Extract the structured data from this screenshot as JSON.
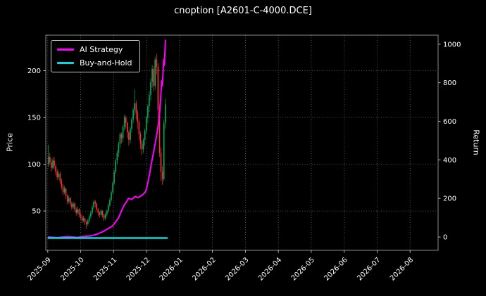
{
  "title": "cnoption [A2601-C-4000.DCE]",
  "legend": [
    {
      "label": "AI Strategy",
      "color": "#ff00ff"
    },
    {
      "label": "Buy-and-Hold",
      "color": "#00dcdc"
    }
  ],
  "chart_data": {
    "type": "mixed",
    "subtype": "candlestick-with-overlay-lines",
    "title": "cnoption [A2601-C-4000.DCE]",
    "background": "#000000",
    "grid": true,
    "legend_position": "upper-left",
    "left_axis": {
      "label": "Price",
      "range": [
        8,
        238
      ],
      "ticks": [
        50,
        100,
        150,
        200
      ]
    },
    "right_axis": {
      "label": "Return",
      "range": [
        -69,
        1047
      ],
      "ticks": [
        0,
        200,
        400,
        600,
        800,
        1000
      ]
    },
    "x_axis": {
      "xlim": [
        -0.06,
        11.85
      ],
      "ticks": [
        0,
        1,
        2,
        3,
        4,
        5,
        6,
        7,
        8,
        9,
        10,
        11
      ],
      "tick_labels": [
        "2025-09",
        "2025-10",
        "2025-11",
        "2025-12",
        "2026-01",
        "2026-02",
        "2026-03",
        "2026-04",
        "2026-05",
        "2026-06",
        "2026-07",
        "2026-08"
      ]
    },
    "candle_colors": {
      "up": "#00b060",
      "down": "#ff3232"
    },
    "candles": {
      "t_start": 0.02,
      "t_step": 0.044375,
      "ohlc": [
        [
          100,
          121,
          97,
          108
        ],
        [
          108,
          112,
          99,
          102
        ],
        [
          102,
          106,
          92,
          96
        ],
        [
          96,
          107,
          94,
          104
        ],
        [
          104,
          108,
          95,
          98
        ],
        [
          98,
          101,
          88,
          92
        ],
        [
          92,
          95,
          83,
          86
        ],
        [
          86,
          93,
          84,
          90
        ],
        [
          90,
          92,
          79,
          82
        ],
        [
          82,
          85,
          73,
          76
        ],
        [
          76,
          79,
          67,
          70
        ],
        [
          70,
          77,
          68,
          74
        ],
        [
          74,
          75,
          63,
          66
        ],
        [
          66,
          68,
          57,
          60
        ],
        [
          60,
          67,
          58,
          64
        ],
        [
          64,
          65,
          55,
          58
        ],
        [
          58,
          60,
          51,
          54
        ],
        [
          54,
          60,
          52,
          58
        ],
        [
          58,
          59,
          49,
          52
        ],
        [
          52,
          54,
          45,
          48
        ],
        [
          48,
          55,
          46,
          52
        ],
        [
          52,
          53,
          43,
          46
        ],
        [
          46,
          48,
          41,
          44
        ],
        [
          44,
          46,
          37,
          40
        ],
        [
          40,
          45,
          38,
          42
        ],
        [
          42,
          43,
          35,
          38
        ],
        [
          38,
          40,
          31,
          36
        ],
        [
          36,
          42,
          34,
          40
        ],
        [
          40,
          46,
          38,
          44
        ],
        [
          44,
          50,
          42,
          48
        ],
        [
          48,
          56,
          46,
          54
        ],
        [
          54,
          62,
          52,
          60
        ],
        [
          60,
          62,
          54,
          58
        ],
        [
          58,
          59,
          49,
          52
        ],
        [
          52,
          53,
          45,
          48
        ],
        [
          48,
          50,
          43,
          46
        ],
        [
          46,
          52,
          44,
          50
        ],
        [
          50,
          51,
          43,
          46
        ],
        [
          46,
          47,
          39,
          42
        ],
        [
          42,
          48,
          40,
          46
        ],
        [
          46,
          52,
          44,
          50
        ],
        [
          50,
          58,
          48,
          56
        ],
        [
          56,
          64,
          54,
          62
        ],
        [
          62,
          72,
          60,
          70
        ],
        [
          70,
          82,
          68,
          80
        ],
        [
          80,
          94,
          78,
          92
        ],
        [
          92,
          106,
          90,
          104
        ],
        [
          104,
          115,
          100,
          112
        ],
        [
          112,
          124,
          108,
          122
        ],
        [
          122,
          134,
          118,
          132
        ],
        [
          132,
          134,
          122,
          128
        ],
        [
          128,
          142,
          124,
          140
        ],
        [
          140,
          153,
          136,
          150
        ],
        [
          150,
          152,
          138,
          144
        ],
        [
          144,
          146,
          128,
          134
        ],
        [
          134,
          136,
          120,
          126
        ],
        [
          126,
          140,
          122,
          138
        ],
        [
          138,
          150,
          134,
          148
        ],
        [
          148,
          160,
          144,
          158
        ],
        [
          158,
          180,
          152,
          165
        ],
        [
          165,
          168,
          148,
          155
        ],
        [
          155,
          158,
          138,
          145
        ],
        [
          145,
          148,
          126,
          132
        ],
        [
          132,
          135,
          116,
          122
        ],
        [
          122,
          125,
          110,
          116
        ],
        [
          116,
          128,
          112,
          126
        ],
        [
          126,
          138,
          120,
          136
        ],
        [
          136,
          152,
          132,
          150
        ],
        [
          150,
          164,
          144,
          162
        ],
        [
          162,
          178,
          156,
          174
        ],
        [
          174,
          192,
          168,
          188
        ],
        [
          188,
          206,
          182,
          202
        ],
        [
          202,
          205,
          178,
          184
        ],
        [
          184,
          215,
          180,
          212
        ],
        [
          212,
          218,
          196,
          204
        ],
        [
          204,
          208,
          150,
          158
        ],
        [
          158,
          164,
          108,
          112
        ],
        [
          112,
          118,
          82,
          92
        ],
        [
          92,
          98,
          78,
          84
        ],
        [
          84,
          148,
          82,
          144
        ],
        [
          144,
          170,
          138,
          164
        ]
      ]
    },
    "series": [
      {
        "name": "AI Strategy",
        "axis": "right",
        "color": "#ff00ff",
        "width": 2,
        "points": [
          [
            0.02,
            0
          ],
          [
            0.3,
            -3
          ],
          [
            0.6,
            2
          ],
          [
            0.9,
            -2
          ],
          [
            1.1,
            3
          ],
          [
            1.3,
            5
          ],
          [
            1.5,
            15
          ],
          [
            1.7,
            30
          ],
          [
            1.85,
            45
          ],
          [
            1.95,
            55
          ],
          [
            2.05,
            75
          ],
          [
            2.15,
            100
          ],
          [
            2.25,
            140
          ],
          [
            2.32,
            165
          ],
          [
            2.4,
            185
          ],
          [
            2.45,
            200
          ],
          [
            2.55,
            195
          ],
          [
            2.65,
            210
          ],
          [
            2.75,
            205
          ],
          [
            2.85,
            215
          ],
          [
            2.95,
            230
          ],
          [
            3.0,
            250
          ],
          [
            3.05,
            290
          ],
          [
            3.1,
            335
          ],
          [
            3.15,
            385
          ],
          [
            3.2,
            430
          ],
          [
            3.25,
            475
          ],
          [
            3.3,
            520
          ],
          [
            3.34,
            565
          ],
          [
            3.37,
            605
          ],
          [
            3.4,
            650
          ],
          [
            3.42,
            700
          ],
          [
            3.44,
            755
          ],
          [
            3.46,
            810
          ],
          [
            3.48,
            785
          ],
          [
            3.5,
            855
          ],
          [
            3.52,
            920
          ],
          [
            3.54,
            890
          ],
          [
            3.57,
            1020
          ]
        ]
      },
      {
        "name": "Buy-and-Hold",
        "axis": "right",
        "color": "#00dcdc",
        "width": 2.5,
        "points": [
          [
            0.02,
            -5
          ],
          [
            3.62,
            -5
          ]
        ]
      }
    ]
  }
}
